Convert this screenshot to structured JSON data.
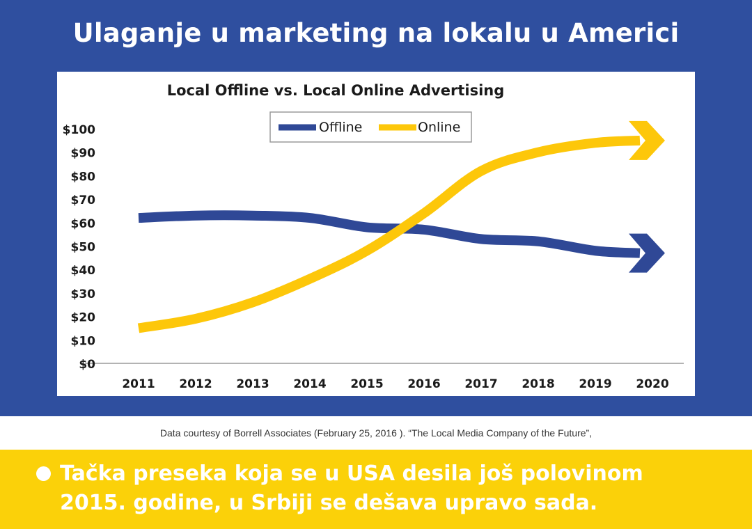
{
  "headline": "Ulaganje u marketing na lokalu u Americi",
  "source_note": "Data courtesy of Borrell Associates (February 25, 2016 ). “The Local Media Company of the Future”,",
  "bullet": {
    "line1": "Tačka preseka koja se u USA desila još polovinom",
    "line2": "2015. godine, u Srbiji se dešava upravo sada."
  },
  "colors": {
    "background_blue": "#2f4f9f",
    "highlight_yellow": "#fbd109",
    "offline_series": "#2f4896",
    "online_series": "#fdc70a"
  },
  "chart_data": {
    "type": "line",
    "title": "Local Offline vs. Local Online Advertising",
    "x": [
      "2011",
      "2012",
      "2013",
      "2014",
      "2015",
      "2016",
      "2017",
      "2018",
      "2019",
      "2020"
    ],
    "yticks": [
      "$0",
      "$10",
      "$20",
      "$30",
      "$40",
      "$50",
      "$60",
      "$70",
      "$80",
      "$90",
      "$100"
    ],
    "ylim": [
      0,
      100
    ],
    "legend_position": "top-center",
    "grid": false,
    "series": [
      {
        "name": "Offline",
        "color": "#2f4896",
        "values": [
          62,
          63,
          63,
          62,
          58,
          57,
          53,
          52,
          48,
          47
        ]
      },
      {
        "name": "Online",
        "color": "#fdc70a",
        "values": [
          15,
          19,
          26,
          36,
          48,
          64,
          82,
          90,
          94,
          95
        ]
      }
    ]
  }
}
